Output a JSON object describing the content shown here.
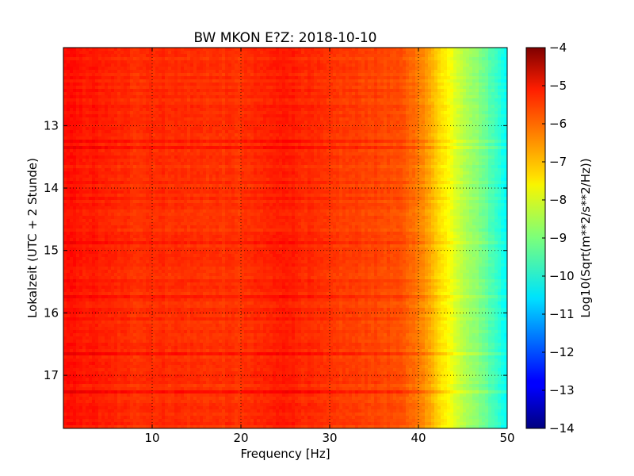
{
  "chart_data": {
    "type": "heatmap",
    "title": "BW MKON E?Z: 2018-10-10",
    "xlabel": "Frequency [Hz]",
    "ylabel": "Lokalzeit (UTC + 2 Stunde)",
    "xlim": [
      0,
      50
    ],
    "ylim": [
      11.75,
      17.85
    ],
    "y_inverted": true,
    "x_ticks": [
      10,
      20,
      30,
      40,
      50
    ],
    "y_ticks": [
      13,
      14,
      15,
      16,
      17
    ],
    "grid": true,
    "colorbar": {
      "label": "Log10(Sqrt(m**2/s**2/Hz))",
      "range": [
        -14,
        -4
      ],
      "ticks": [
        -4,
        -5,
        -6,
        -7,
        -8,
        -9,
        -10,
        -11,
        -12,
        -13,
        -14
      ],
      "colormap": "jet"
    },
    "spectrum_profile": {
      "frequency_hz": [
        0,
        1,
        2,
        3,
        5,
        8,
        10,
        14,
        20,
        24,
        25,
        26,
        30,
        35,
        38,
        40,
        41,
        42,
        43,
        44,
        45,
        46,
        47,
        48,
        49,
        50
      ],
      "log10_amplitude": [
        -5.4,
        -5.4,
        -5.5,
        -5.45,
        -5.6,
        -5.7,
        -5.65,
        -5.7,
        -5.75,
        -5.55,
        -5.45,
        -5.55,
        -5.8,
        -5.9,
        -6.05,
        -6.4,
        -6.8,
        -7.2,
        -7.6,
        -8.0,
        -8.4,
        -8.7,
        -9.0,
        -9.4,
        -9.8,
        -10.2
      ]
    }
  }
}
